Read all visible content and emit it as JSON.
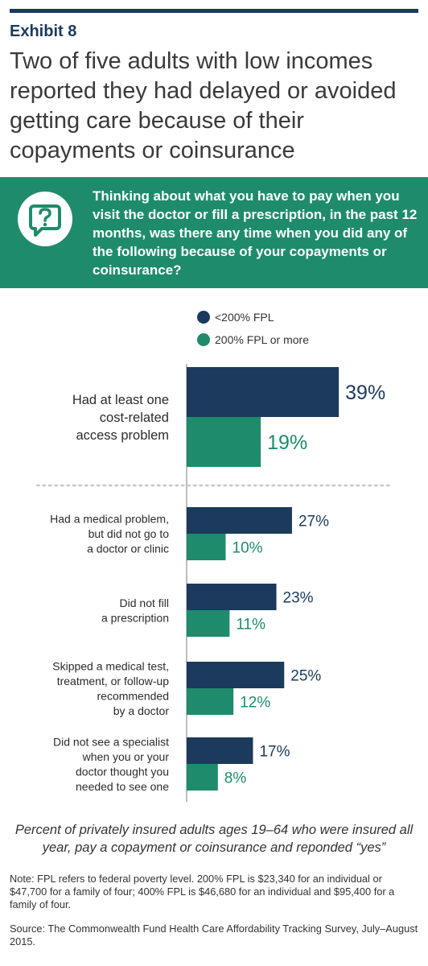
{
  "exhibit_label": "Exhibit 8",
  "title": "Two of five adults with low incomes reported they had delayed or avoided getting care because of their copayments or coinsurance",
  "question": "Thinking about what you have to pay when you visit the doctor or fill a prescription, in the past 12 months, was there any time when you did any of the following because of your copayments or coinsurance?",
  "colors": {
    "navy": "#1b3a5c",
    "green": "#1f8b6d",
    "banner": "#1f8b6d"
  },
  "legend": [
    {
      "label": "<200% FPL",
      "color": "#1b3a5c"
    },
    {
      "label": "200% FPL or more",
      "color": "#1f8b6d"
    }
  ],
  "chart_data": {
    "type": "bar",
    "orientation": "horizontal",
    "grouped": true,
    "categories": [
      [
        "Had at least one",
        "cost-related",
        "access problem"
      ],
      [
        "Had a medical problem,",
        "but did not go to",
        "a doctor or clinic"
      ],
      [
        "Did not fill",
        "a prescription"
      ],
      [
        "Skipped a medical test,",
        "treatment, or follow-up",
        "recommended",
        "by a doctor"
      ],
      [
        "Did not see a specialist",
        "when you or your",
        "doctor thought you",
        "needed to see one"
      ]
    ],
    "series": [
      {
        "name": "<200% FPL",
        "values": [
          39,
          27,
          23,
          25,
          17
        ],
        "labels": [
          "39%",
          "27%",
          "23%",
          "25%",
          "17%"
        ]
      },
      {
        "name": "200% FPL or more",
        "values": [
          19,
          10,
          11,
          12,
          8
        ],
        "labels": [
          "19%",
          "10%",
          "11%",
          "12%",
          "8%"
        ]
      }
    ],
    "xlim": [
      0,
      40
    ],
    "grid": false,
    "legend_position": "top"
  },
  "caption": "Percent of privately insured adults ages 19–64 who were insured all year, pay a copayment or coinsurance and reponded “yes”",
  "note": "Note: FPL refers to federal poverty level. 200% FPL is $23,340 for an individual or $47,700 for a family of four; 400% FPL is $46,680 for an individual and $95,400 for a family of four.",
  "source": "Source: The Commonwealth Fund Health Care Affordability Tracking Survey, July–August 2015."
}
